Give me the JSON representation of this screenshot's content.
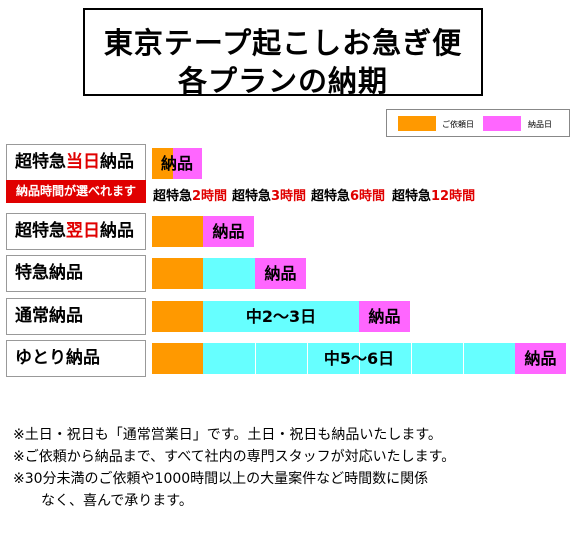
{
  "title": {
    "line1": "東京テープ起こしお急ぎ便",
    "line2": "各プランの納期"
  },
  "legend": {
    "order_label": "ご依頼日",
    "delivery_label": "納品日",
    "order_color": "#ff9900",
    "delivery_color": "#ff66ff"
  },
  "colors": {
    "middle": "#66ffff",
    "accent": "#e00000"
  },
  "plans": {
    "same_day": {
      "prefix": "超特急",
      "highlight": "当日",
      "suffix": "納品",
      "delivery": "納品"
    },
    "rush_badge": "納品時間が選べれます",
    "time_options": [
      {
        "prefix": "超特急",
        "highlight": "2時間"
      },
      {
        "prefix": "超特急",
        "highlight": "3時間"
      },
      {
        "prefix": "超特急",
        "highlight": "6時間"
      },
      {
        "prefix": "超特急",
        "highlight": "12時間"
      }
    ],
    "next_day": {
      "prefix": "超特急",
      "highlight": "翌日",
      "suffix": "納品",
      "delivery": "納品"
    },
    "express": {
      "label": "特急納品",
      "delivery": "納品"
    },
    "normal": {
      "label": "通常納品",
      "middle": "中2～3日",
      "delivery": "納品"
    },
    "relaxed": {
      "label": "ゆとり納品",
      "middle": "中5～6日",
      "delivery": "納品"
    }
  },
  "notes": [
    "※土日・祝日も「通常営業日」です。土日・祝日も納品いたします。",
    "※ご依頼から納品まで、すべて社内の専門スタッフが対応いたします。",
    "※30分未満のご依頼や1000時間以上の大量案件など時間数に関係",
    "なく、喜んで承ります。"
  ]
}
